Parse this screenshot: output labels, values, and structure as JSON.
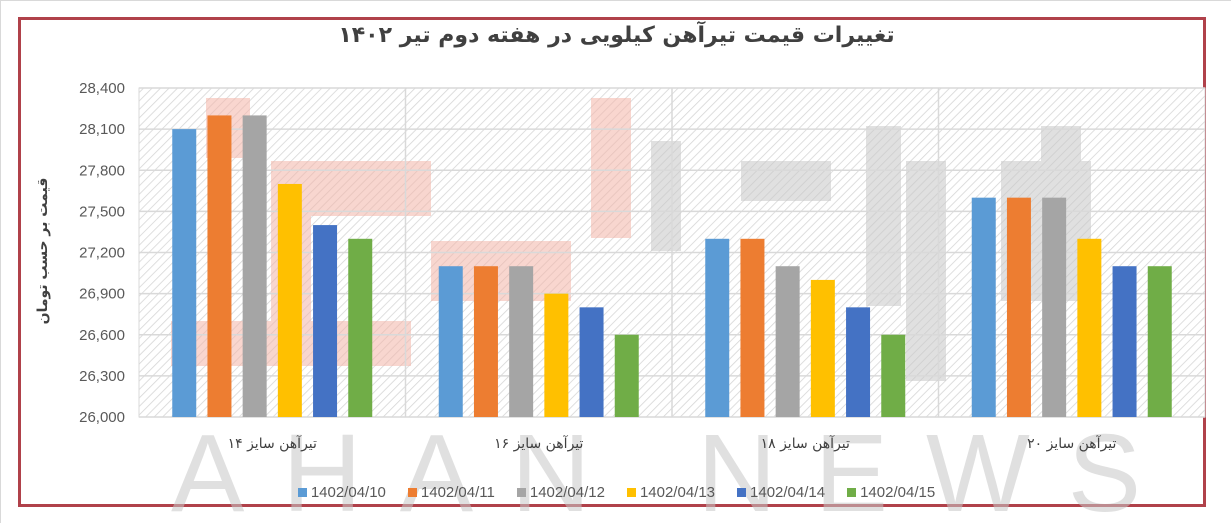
{
  "chart_data": {
    "type": "bar",
    "title": "تغییرات قیمت تیرآهن کیلویی در هفته دوم تیر ۱۴۰۲",
    "xlabel": "",
    "ylabel": "قیمت بر حسب تومان",
    "ylim": [
      26000,
      28400
    ],
    "yticks": [
      26000,
      26300,
      26600,
      26900,
      27200,
      27500,
      27800,
      28100,
      28400
    ],
    "ytick_labels": [
      "26,000",
      "26,300",
      "26,600",
      "26,900",
      "27,200",
      "27,500",
      "27,800",
      "28,100",
      "28,400"
    ],
    "grid": true,
    "legend_position": "bottom",
    "categories": [
      "تیرآهن سایز ۱۴",
      "تیرآهن سایز ۱۶",
      "تیرآهن سایز ۱۸",
      "تیرآهن سایز ۲۰"
    ],
    "series": [
      {
        "name": "1402/04/10",
        "color": "#5b9bd5",
        "values": [
          28100,
          27100,
          27300,
          27600
        ]
      },
      {
        "name": "1402/04/11",
        "color": "#ed7d31",
        "values": [
          28200,
          27100,
          27300,
          27600
        ]
      },
      {
        "name": "1402/04/12",
        "color": "#a5a5a5",
        "values": [
          28200,
          27100,
          27100,
          27600
        ]
      },
      {
        "name": "1402/04/13",
        "color": "#ffc000",
        "values": [
          27700,
          26900,
          27000,
          27300
        ]
      },
      {
        "name": "1402/04/14",
        "color": "#4472c4",
        "values": [
          27400,
          26800,
          26800,
          27100
        ]
      },
      {
        "name": "1402/04/15",
        "color": "#70ad47",
        "values": [
          27300,
          26600,
          26600,
          27100
        ]
      }
    ]
  },
  "watermark": {
    "text": "AHAN NEWS",
    "colors": {
      "red": "#f4b5a8",
      "gray": "#c8c8c8"
    }
  },
  "frame_color": "#b0414a"
}
